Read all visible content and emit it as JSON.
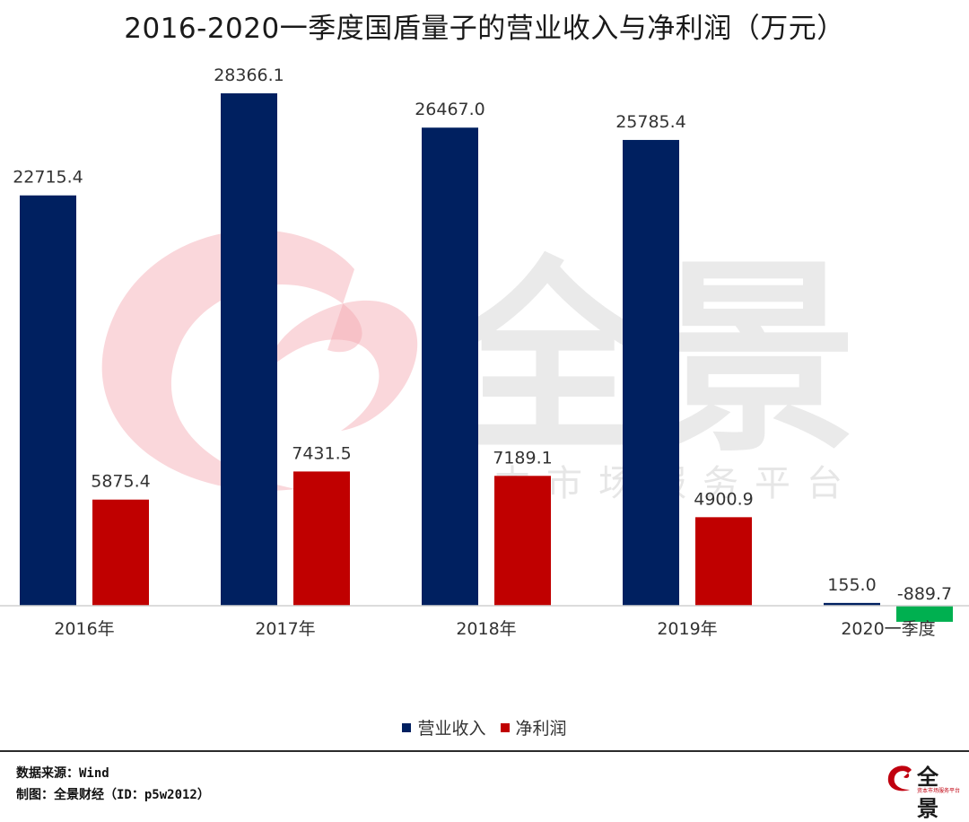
{
  "chart_data": {
    "type": "bar",
    "title": "2016-2020一季度国盾量子的营业收入与净利润（万元）",
    "categories": [
      "2016年",
      "2017年",
      "2018年",
      "2019年",
      "2020一季度"
    ],
    "series": [
      {
        "name": "营业收入",
        "color": "#002060",
        "values": [
          22715.4,
          28366.1,
          26467.0,
          25785.4,
          155.0
        ]
      },
      {
        "name": "净利润",
        "color": "#c00000",
        "negative_color": "#00b050",
        "values": [
          5875.4,
          7431.5,
          7189.1,
          4900.9,
          -889.7
        ]
      }
    ],
    "value_labels": [
      [
        "22715.4",
        "28366.1",
        "26467.0",
        "25785.4",
        "155.0"
      ],
      [
        "5875.4",
        "7431.5",
        "7189.1",
        "4900.9",
        "-889.7"
      ]
    ],
    "legend_position": "bottom",
    "grid": false
  },
  "watermark": {
    "main_text": "全景",
    "sub_text": "资本市场服务平台"
  },
  "footer": {
    "source": "数据来源：Wind",
    "credit": "制图：全景财经（ID：p5w2012）",
    "logo_text": "全景",
    "logo_sub": "资本市场服务平台"
  }
}
